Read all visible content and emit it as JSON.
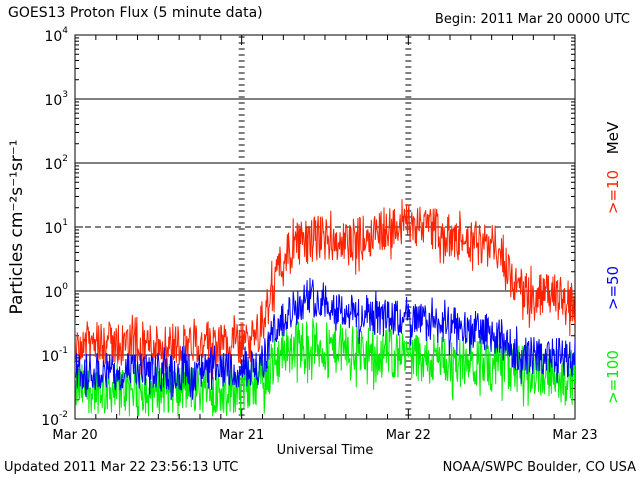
{
  "header": {
    "title": "GOES13 Proton Flux (5 minute data)",
    "begin": "Begin: 2011 Mar 20 0000 UTC"
  },
  "footer": {
    "updated": "Updated 2011 Mar 22 23:56:13 UTC",
    "source": "NOAA/SWPC Boulder, CO USA"
  },
  "colors": {
    "ge10": "#ff2200",
    "ge50": "#0000ff",
    "ge100": "#00ee00",
    "axis": "#000000"
  },
  "chart_data": {
    "type": "line",
    "title": "GOES13 Proton Flux (5 minute data)",
    "xlabel": "Universal Time",
    "ylabel": "Particles cm⁻²s⁻¹sr⁻¹",
    "yscale": "log",
    "ylim_exp": [
      -2,
      4
    ],
    "y_ticks": [
      {
        "base": "10",
        "exp": "4"
      },
      {
        "base": "10",
        "exp": "3"
      },
      {
        "base": "10",
        "exp": "2"
      },
      {
        "base": "10",
        "exp": "1"
      },
      {
        "base": "10",
        "exp": "0"
      },
      {
        "base": "10",
        "exp": "-1"
      },
      {
        "base": "10",
        "exp": "-2"
      }
    ],
    "x_range_days": [
      0,
      3
    ],
    "x_ticks": [
      "Mar 20",
      "Mar 21",
      "Mar 22",
      "Mar 23"
    ],
    "thresholds": [
      {
        "value": 10,
        "style": "dashed"
      }
    ],
    "unit_label": "MeV",
    "series": [
      {
        "name": ">=10",
        "color": "#ff2200",
        "noise": 0.35,
        "points": [
          [
            0,
            0.15
          ],
          [
            0.5,
            0.15
          ],
          [
            1.0,
            0.15
          ],
          [
            1.08,
            0.17
          ],
          [
            1.15,
            0.5
          ],
          [
            1.22,
            2.5
          ],
          [
            1.3,
            5
          ],
          [
            1.45,
            7
          ],
          [
            1.55,
            6.5
          ],
          [
            1.6,
            5.5
          ],
          [
            1.75,
            7
          ],
          [
            1.8,
            9
          ],
          [
            1.9,
            10
          ],
          [
            2.0,
            10.5
          ],
          [
            2.1,
            12
          ],
          [
            2.2,
            8
          ],
          [
            2.3,
            6
          ],
          [
            2.5,
            5
          ],
          [
            2.58,
            4
          ],
          [
            2.62,
            1.5
          ],
          [
            2.7,
            0.9
          ],
          [
            2.85,
            0.9
          ],
          [
            3.0,
            0.6
          ]
        ]
      },
      {
        "name": ">=50",
        "color": "#0000ff",
        "noise": 0.3,
        "points": [
          [
            0,
            0.055
          ],
          [
            0.5,
            0.055
          ],
          [
            1.0,
            0.055
          ],
          [
            1.12,
            0.07
          ],
          [
            1.2,
            0.25
          ],
          [
            1.3,
            0.5
          ],
          [
            1.4,
            0.85
          ],
          [
            1.5,
            0.75
          ],
          [
            1.6,
            0.5
          ],
          [
            1.75,
            0.4
          ],
          [
            2.0,
            0.35
          ],
          [
            2.2,
            0.3
          ],
          [
            2.4,
            0.25
          ],
          [
            2.55,
            0.2
          ],
          [
            2.62,
            0.12
          ],
          [
            2.7,
            0.1
          ],
          [
            3.0,
            0.09
          ]
        ]
      },
      {
        "name": ">=100",
        "color": "#00ee00",
        "noise": 0.4,
        "points": [
          [
            0,
            0.03
          ],
          [
            0.5,
            0.03
          ],
          [
            1.0,
            0.03
          ],
          [
            1.15,
            0.05
          ],
          [
            1.25,
            0.12
          ],
          [
            1.35,
            0.15
          ],
          [
            1.5,
            0.13
          ],
          [
            1.7,
            0.12
          ],
          [
            2.0,
            0.1
          ],
          [
            2.3,
            0.08
          ],
          [
            2.6,
            0.06
          ],
          [
            3.0,
            0.05
          ]
        ]
      }
    ]
  }
}
